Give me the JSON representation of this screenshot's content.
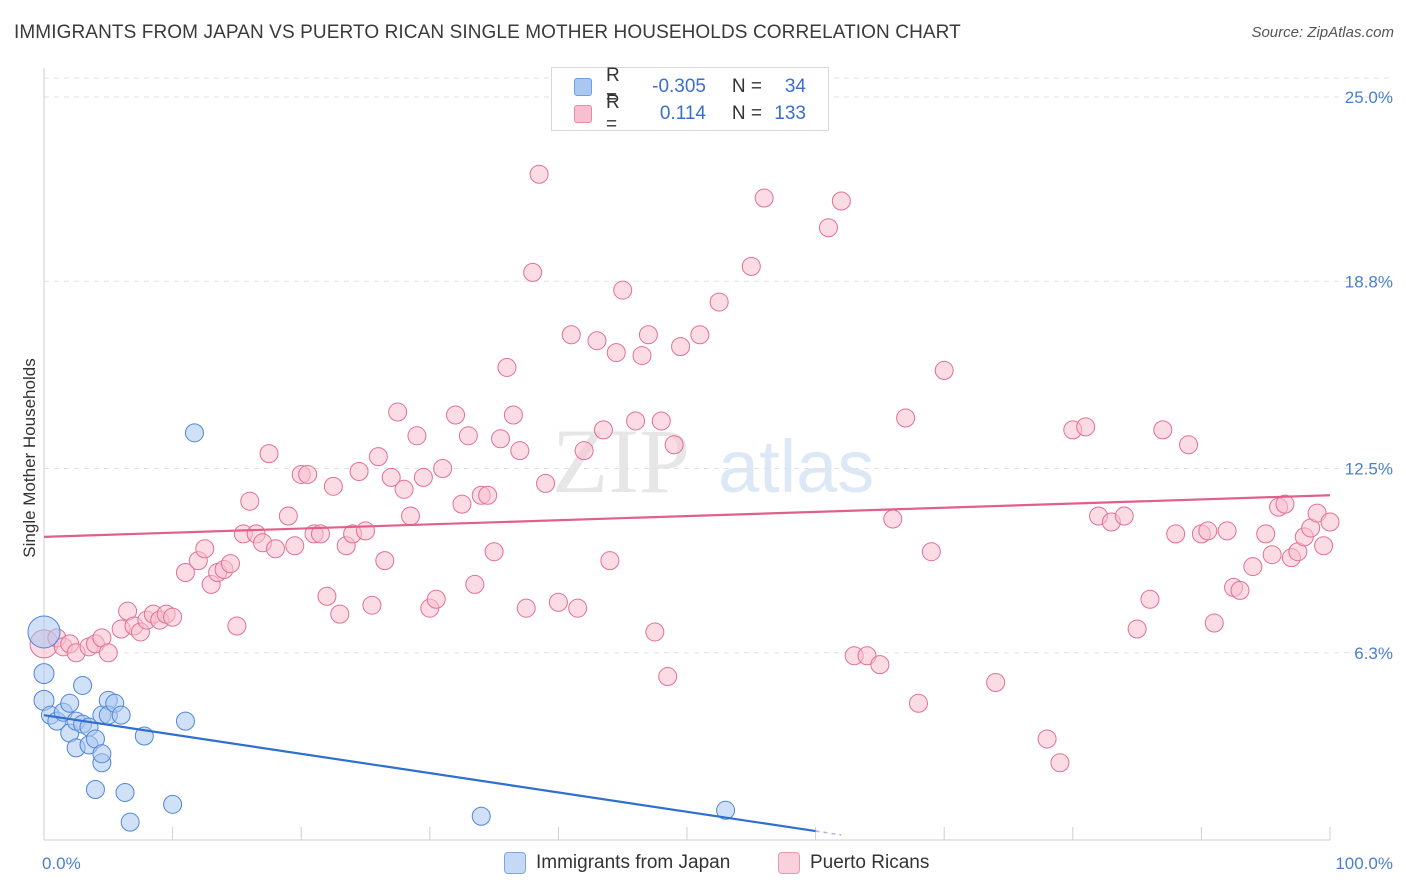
{
  "title": "IMMIGRANTS FROM JAPAN VS PUERTO RICAN SINGLE MOTHER HOUSEHOLDS CORRELATION CHART",
  "source": "Source: ZipAtlas.com",
  "watermark": {
    "zip": "ZIP",
    "atlas": "atlas"
  },
  "legend": {
    "rows": [
      {
        "r_label": "R =",
        "r_value": "-0.305",
        "n_label": "N =",
        "n_value": "34",
        "color": "#a9c7f0",
        "border": "#6f9fe0"
      },
      {
        "r_label": "R =",
        "r_value": "0.114",
        "n_label": "N =",
        "n_value": "133",
        "color": "#f7c0d0",
        "border": "#e88aa6"
      }
    ]
  },
  "bottom_legend": [
    {
      "label": "Immigrants from Japan",
      "color": "#c5d9f5",
      "border": "#7fa6de"
    },
    {
      "label": "Puerto Ricans",
      "color": "#f9d0dc",
      "border": "#e99ab2"
    }
  ],
  "chart_data": {
    "type": "scatter",
    "title": "IMMIGRANTS FROM JAPAN VS PUERTO RICAN SINGLE MOTHER HOUSEHOLDS CORRELATION CHART",
    "xlabel": "",
    "ylabel": "Single Mother Households",
    "xlim": [
      0,
      100
    ],
    "ylim": [
      0,
      25
    ],
    "x_tick_labels": [
      {
        "value": 0,
        "label": "0.0%"
      },
      {
        "value": 100,
        "label": "100.0%"
      }
    ],
    "y_tick_labels": [
      {
        "value": 6.3,
        "label": "6.3%"
      },
      {
        "value": 12.5,
        "label": "12.5%"
      },
      {
        "value": 18.8,
        "label": "18.8%"
      },
      {
        "value": 25.0,
        "label": "25.0%"
      }
    ],
    "grid": "horizontal dashed",
    "colors": {
      "japan": "#4f86d9",
      "japan_fill": "#a9c7f0",
      "pr": "#e46f96",
      "pr_fill": "#f7c0d0",
      "japan_line": "#2f6fd0",
      "pr_line": "#e0608a"
    },
    "series": [
      {
        "name": "Immigrants from Japan",
        "trend": {
          "x0": 0,
          "y0": 4.2,
          "x1": 60,
          "y1": 0.3,
          "dash_to_x": 62
        },
        "points": [
          [
            0,
            7.0,
            30
          ],
          [
            0,
            5.6,
            18
          ],
          [
            0,
            4.7,
            18
          ],
          [
            0.5,
            4.2,
            16
          ],
          [
            1,
            4.0,
            16
          ],
          [
            1.5,
            4.3,
            16
          ],
          [
            2,
            3.6,
            16
          ],
          [
            2,
            4.6,
            16
          ],
          [
            2.5,
            3.1,
            16
          ],
          [
            2.5,
            4.0,
            16
          ],
          [
            3,
            5.2,
            16
          ],
          [
            3,
            3.9,
            16
          ],
          [
            3.5,
            3.2,
            16
          ],
          [
            3.5,
            3.8,
            16
          ],
          [
            4,
            3.4,
            16
          ],
          [
            4,
            1.7,
            16
          ],
          [
            4.5,
            4.2,
            16
          ],
          [
            4.5,
            2.6,
            16
          ],
          [
            4.5,
            2.9,
            16
          ],
          [
            5,
            4.7,
            16
          ],
          [
            5,
            4.2,
            16
          ],
          [
            5.5,
            4.6,
            16
          ],
          [
            6,
            4.2,
            16
          ],
          [
            6.3,
            1.6,
            16
          ],
          [
            6.7,
            0.6,
            16
          ],
          [
            7.8,
            3.5,
            16
          ],
          [
            10,
            1.2,
            16
          ],
          [
            11,
            4.0,
            16
          ],
          [
            11.7,
            13.7,
            16
          ],
          [
            34,
            0.8,
            16
          ],
          [
            53,
            1.0,
            16
          ]
        ]
      },
      {
        "name": "Puerto Ricans",
        "trend": {
          "x0": 0,
          "y0": 10.2,
          "x1": 100,
          "y1": 11.6
        },
        "points": [
          [
            0,
            6.6,
            26
          ],
          [
            1,
            6.8,
            16
          ],
          [
            1.5,
            6.5,
            16
          ],
          [
            2,
            6.6,
            16
          ],
          [
            2.5,
            6.3,
            16
          ],
          [
            3.5,
            6.5,
            16
          ],
          [
            4,
            6.6,
            16
          ],
          [
            4.5,
            6.8,
            16
          ],
          [
            5,
            6.3,
            16
          ],
          [
            6,
            7.1,
            16
          ],
          [
            6.5,
            7.7,
            16
          ],
          [
            7,
            7.2,
            16
          ],
          [
            7.5,
            7.0,
            16
          ],
          [
            8,
            7.4,
            16
          ],
          [
            8.5,
            7.6,
            16
          ],
          [
            9,
            7.4,
            16
          ],
          [
            9.5,
            7.6,
            16
          ],
          [
            10,
            7.5,
            16
          ],
          [
            11,
            9.0,
            16
          ],
          [
            12,
            9.4,
            16
          ],
          [
            12.5,
            9.8,
            16
          ],
          [
            13,
            8.6,
            16
          ],
          [
            13.5,
            9.0,
            16
          ],
          [
            14,
            9.1,
            16
          ],
          [
            14.5,
            9.3,
            16
          ],
          [
            15,
            7.2,
            16
          ],
          [
            15.5,
            10.3,
            16
          ],
          [
            16,
            11.4,
            16
          ],
          [
            16.5,
            10.3,
            16
          ],
          [
            17,
            10.0,
            16
          ],
          [
            17.5,
            13.0,
            16
          ],
          [
            18,
            9.8,
            16
          ],
          [
            19,
            10.9,
            16
          ],
          [
            19.5,
            9.9,
            16
          ],
          [
            20,
            12.3,
            16
          ],
          [
            20.5,
            12.3,
            16
          ],
          [
            21,
            10.3,
            16
          ],
          [
            21.5,
            10.3,
            16
          ],
          [
            22,
            8.2,
            16
          ],
          [
            22.5,
            11.9,
            16
          ],
          [
            23,
            7.6,
            16
          ],
          [
            23.5,
            9.9,
            16
          ],
          [
            24,
            10.3,
            16
          ],
          [
            24.5,
            12.4,
            16
          ],
          [
            25,
            10.4,
            16
          ],
          [
            25.5,
            7.9,
            16
          ],
          [
            26,
            12.9,
            16
          ],
          [
            26.5,
            9.4,
            16
          ],
          [
            27,
            12.2,
            16
          ],
          [
            27.5,
            14.4,
            16
          ],
          [
            28,
            11.8,
            16
          ],
          [
            28.5,
            10.9,
            16
          ],
          [
            29,
            13.6,
            16
          ],
          [
            29.5,
            12.2,
            16
          ],
          [
            30,
            7.8,
            16
          ],
          [
            30.5,
            8.1,
            16
          ],
          [
            31,
            12.5,
            16
          ],
          [
            32,
            14.3,
            16
          ],
          [
            32.5,
            11.3,
            16
          ],
          [
            33,
            13.6,
            16
          ],
          [
            33.5,
            8.6,
            16
          ],
          [
            34,
            11.6,
            16
          ],
          [
            34.5,
            11.6,
            16
          ],
          [
            35,
            9.7,
            16
          ],
          [
            35.5,
            13.5,
            16
          ],
          [
            36,
            15.9,
            16
          ],
          [
            36.5,
            14.3,
            16
          ],
          [
            37,
            13.1,
            16
          ],
          [
            37.5,
            7.8,
            16
          ],
          [
            38,
            19.1,
            16
          ],
          [
            38.5,
            22.4,
            16
          ],
          [
            39,
            12.0,
            16
          ],
          [
            40,
            8.0,
            16
          ],
          [
            41,
            17.0,
            16
          ],
          [
            41.5,
            7.8,
            16
          ],
          [
            42,
            13.1,
            16
          ],
          [
            43,
            16.8,
            16
          ],
          [
            43.5,
            13.8,
            16
          ],
          [
            44,
            9.4,
            16
          ],
          [
            44.5,
            16.4,
            16
          ],
          [
            45,
            18.5,
            16
          ],
          [
            46,
            14.1,
            16
          ],
          [
            46.5,
            16.3,
            16
          ],
          [
            47,
            17.0,
            16
          ],
          [
            47.5,
            7.0,
            16
          ],
          [
            48,
            14.1,
            16
          ],
          [
            48.5,
            5.5,
            16
          ],
          [
            49,
            13.3,
            16
          ],
          [
            49.5,
            16.6,
            16
          ],
          [
            51,
            17.0,
            16
          ],
          [
            52.5,
            18.1,
            16
          ],
          [
            55,
            19.3,
            16
          ],
          [
            56,
            21.6,
            16
          ],
          [
            61,
            20.6,
            16
          ],
          [
            62,
            21.5,
            16
          ],
          [
            63,
            6.2,
            16
          ],
          [
            64,
            6.2,
            16
          ],
          [
            65,
            5.9,
            16
          ],
          [
            66,
            10.8,
            16
          ],
          [
            67,
            14.2,
            16
          ],
          [
            68,
            4.6,
            16
          ],
          [
            69,
            9.7,
            16
          ],
          [
            70,
            15.8,
            16
          ],
          [
            74,
            5.3,
            16
          ],
          [
            78,
            3.4,
            16
          ],
          [
            79,
            2.6,
            16
          ],
          [
            80,
            13.8,
            16
          ],
          [
            81,
            13.9,
            16
          ],
          [
            82,
            10.9,
            16
          ],
          [
            83,
            10.7,
            16
          ],
          [
            84,
            10.9,
            16
          ],
          [
            85,
            7.1,
            16
          ],
          [
            86,
            8.1,
            16
          ],
          [
            87,
            13.8,
            16
          ],
          [
            88,
            10.3,
            16
          ],
          [
            89,
            13.3,
            16
          ],
          [
            90,
            10.3,
            16
          ],
          [
            90.5,
            10.4,
            16
          ],
          [
            91,
            7.3,
            16
          ],
          [
            92,
            10.4,
            16
          ],
          [
            92.5,
            8.5,
            16
          ],
          [
            93,
            8.4,
            16
          ],
          [
            94,
            9.2,
            16
          ],
          [
            95,
            10.3,
            16
          ],
          [
            95.5,
            9.6,
            16
          ],
          [
            96,
            11.2,
            16
          ],
          [
            96.5,
            11.3,
            16
          ],
          [
            97,
            9.5,
            16
          ],
          [
            97.5,
            9.7,
            16
          ],
          [
            98,
            10.2,
            16
          ],
          [
            98.5,
            10.5,
            16
          ],
          [
            99,
            11.0,
            16
          ],
          [
            99.5,
            9.9,
            16
          ],
          [
            100,
            10.7,
            16
          ]
        ]
      }
    ]
  }
}
